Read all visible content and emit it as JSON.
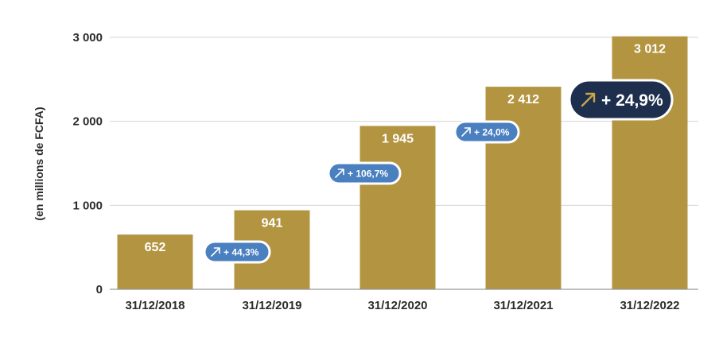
{
  "chart_data": {
    "type": "bar",
    "categories": [
      "31/12/2018",
      "31/12/2019",
      "31/12/2020",
      "31/12/2021",
      "31/12/2022"
    ],
    "values": [
      652,
      941,
      1945,
      2412,
      3012
    ],
    "value_labels": [
      "652",
      "941",
      "1 945",
      "2 412",
      "3 012"
    ],
    "ylabel": "(en millions de FCFA)",
    "ylim": [
      0,
      3000
    ],
    "yticks": [
      0,
      1000,
      2000,
      3000
    ],
    "ytick_labels": [
      "0",
      "1 000",
      "2 000",
      "3 000"
    ],
    "grid": true,
    "growth_labels": [
      "+ 44,3%",
      "+ 106,7%",
      "+ 24,0%"
    ],
    "highlight_label": "+ 24,9%",
    "bar_color": "#b39440",
    "growth_color": "#4a7fc0",
    "highlight_color": "#1e2f4e"
  }
}
